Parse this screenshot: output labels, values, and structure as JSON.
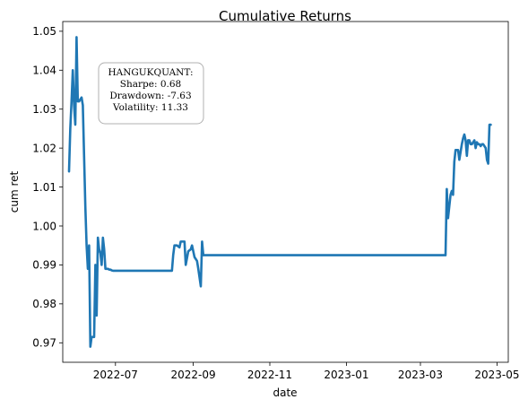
{
  "chart_data": {
    "type": "line",
    "title": "Cumulative Returns",
    "xlabel": "date",
    "ylabel": "cum ret",
    "ylim": [
      0.965,
      1.0525
    ],
    "xlim": [
      "2022-05-20",
      "2023-05-10"
    ],
    "grid": false,
    "line_color": "#1f77b4",
    "x_ticks": [
      {
        "date": "2022-07-01",
        "label": "2022-07"
      },
      {
        "date": "2022-09-01",
        "label": "2022-09"
      },
      {
        "date": "2022-11-01",
        "label": "2022-11"
      },
      {
        "date": "2023-01-01",
        "label": "2023-01"
      },
      {
        "date": "2023-03-01",
        "label": "2023-03"
      },
      {
        "date": "2023-05-01",
        "label": "2023-05"
      }
    ],
    "y_ticks": [
      {
        "value": 0.97,
        "label": "0.97"
      },
      {
        "value": 0.98,
        "label": "0.98"
      },
      {
        "value": 0.99,
        "label": "0.99"
      },
      {
        "value": 1.0,
        "label": "1.00"
      },
      {
        "value": 1.01,
        "label": "1.01"
      },
      {
        "value": 1.02,
        "label": "1.02"
      },
      {
        "value": 1.03,
        "label": "1.03"
      },
      {
        "value": 1.04,
        "label": "1.04"
      },
      {
        "value": 1.05,
        "label": "1.05"
      }
    ],
    "annotation": {
      "lines": [
        "HANGUKQUANT:",
        "Sharpe: 0.68",
        "Drawdown: -7.63",
        "Volatility: 11.33"
      ]
    },
    "series": [
      {
        "x": [
          "2022-05-25",
          "2022-05-26",
          "2022-05-27",
          "2022-05-28",
          "2022-05-29",
          "2022-05-30",
          "2022-05-31",
          "2022-06-01",
          "2022-06-02",
          "2022-06-03",
          "2022-06-04",
          "2022-06-05",
          "2022-06-06",
          "2022-06-07",
          "2022-06-08",
          "2022-06-09",
          "2022-06-10",
          "2022-06-11",
          "2022-06-12",
          "2022-06-13",
          "2022-06-14",
          "2022-06-15",
          "2022-06-16",
          "2022-06-17",
          "2022-06-18",
          "2022-06-19",
          "2022-06-20",
          "2022-06-21",
          "2022-06-22",
          "2022-06-23",
          "2022-06-24",
          "2022-06-25",
          "2022-06-26",
          "2022-06-27",
          "2022-06-28",
          "2022-06-29",
          "2022-06-30",
          "2022-07-01",
          "2022-07-05",
          "2022-07-10",
          "2022-07-20",
          "2022-08-01",
          "2022-08-10",
          "2022-08-15",
          "2022-08-16",
          "2022-08-17",
          "2022-08-19",
          "2022-08-21",
          "2022-08-22",
          "2022-08-24",
          "2022-08-25",
          "2022-08-26",
          "2022-08-28",
          "2022-08-30",
          "2022-08-31",
          "2022-09-02",
          "2022-09-04",
          "2022-09-05",
          "2022-09-07",
          "2022-09-08",
          "2022-09-09",
          "2022-09-10",
          "2022-09-11",
          "2022-09-12",
          "2022-09-13",
          "2022-09-14",
          "2022-09-20",
          "2022-10-15",
          "2022-11-15",
          "2022-12-15",
          "2023-01-15",
          "2023-02-15",
          "2023-03-01",
          "2023-03-21",
          "2023-03-22",
          "2023-03-23",
          "2023-03-24",
          "2023-03-25",
          "2023-03-26",
          "2023-03-27",
          "2023-03-28",
          "2023-03-29",
          "2023-03-30",
          "2023-03-31",
          "2023-04-01",
          "2023-04-02",
          "2023-04-03",
          "2023-04-04",
          "2023-04-05",
          "2023-04-06",
          "2023-04-07",
          "2023-04-08",
          "2023-04-09",
          "2023-04-10",
          "2023-04-11",
          "2023-04-12",
          "2023-04-13",
          "2023-04-14",
          "2023-04-15",
          "2023-04-16",
          "2023-04-17",
          "2023-04-18",
          "2023-04-19",
          "2023-04-20",
          "2023-04-21",
          "2023-04-22",
          "2023-04-23",
          "2023-04-24",
          "2023-04-25",
          "2023-04-26"
        ],
        "y": [
          1.014,
          1.025,
          1.032,
          1.04,
          1.031,
          1.026,
          1.0485,
          1.032,
          1.032,
          1.0325,
          1.033,
          1.031,
          1.018,
          1.005,
          0.995,
          0.989,
          0.995,
          0.969,
          0.9715,
          0.9715,
          0.9715,
          0.99,
          0.977,
          0.997,
          0.994,
          0.993,
          0.99,
          0.997,
          0.994,
          0.989,
          0.989,
          0.989,
          0.9888,
          0.9888,
          0.9886,
          0.9885,
          0.9885,
          0.9885,
          0.9885,
          0.9885,
          0.9885,
          0.9885,
          0.9885,
          0.9885,
          0.9925,
          0.995,
          0.995,
          0.9945,
          0.996,
          0.996,
          0.996,
          0.99,
          0.9935,
          0.994,
          0.995,
          0.992,
          0.991,
          0.989,
          0.9845,
          0.996,
          0.9925,
          0.9925,
          0.9925,
          0.9925,
          0.9925,
          0.9925,
          0.9925,
          0.9925,
          0.9925,
          0.9925,
          0.9925,
          0.9925,
          0.9925,
          0.9925,
          1.0095,
          1.002,
          1.005,
          1.008,
          1.009,
          1.008,
          1.0165,
          1.0195,
          1.0195,
          1.0195,
          1.017,
          1.019,
          1.021,
          1.0225,
          1.0235,
          1.022,
          1.018,
          1.022,
          1.022,
          1.021,
          1.021,
          1.0215,
          1.022,
          1.02,
          1.0215,
          1.021,
          1.021,
          1.0205,
          1.021,
          1.021,
          1.0205,
          1.02,
          1.017,
          1.016,
          1.026,
          1.026
        ]
      }
    ]
  }
}
